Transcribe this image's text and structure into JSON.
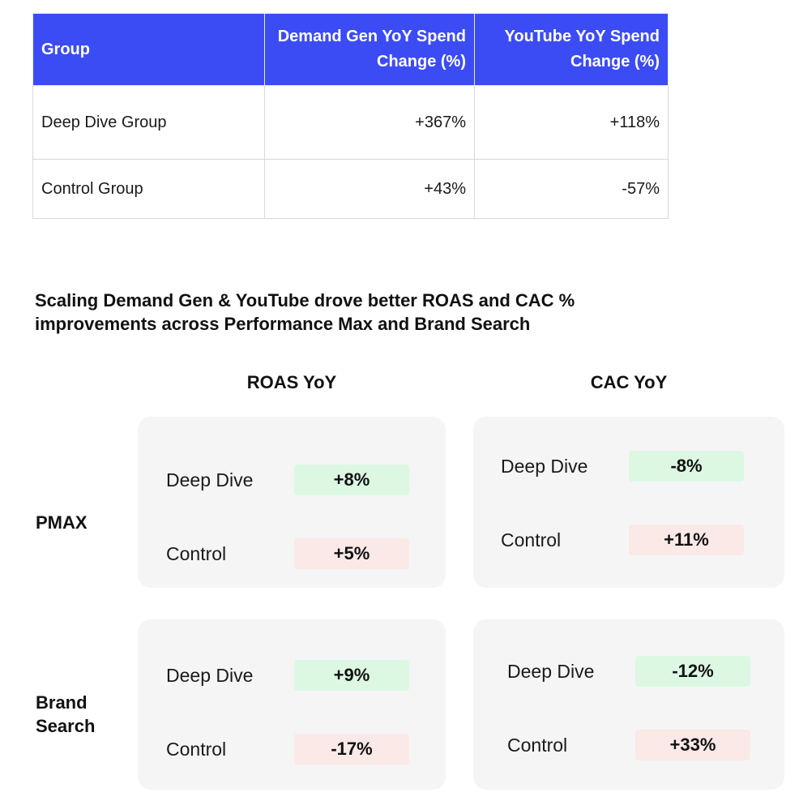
{
  "table": {
    "headers": {
      "group": "Group",
      "demand_gen": "Demand Gen YoY Spend Change (%)",
      "youtube": "YouTube YoY Spend Change (%)"
    },
    "rows": [
      {
        "group": "Deep Dive Group",
        "demand_gen": "+367%",
        "youtube": "+118%"
      },
      {
        "group": "Control Group",
        "demand_gen": "+43%",
        "youtube": "-57%"
      }
    ]
  },
  "section_title": "Scaling Demand Gen & YouTube drove better ROAS and CAC % improvements across Performance Max and Brand Search",
  "columns": {
    "roas": "ROAS YoY",
    "cac": "CAC YoY"
  },
  "rows": {
    "pmax": "PMAX",
    "brand_search": "Brand Search"
  },
  "cards": {
    "pmax_roas": {
      "deep_dive_label": "Deep Dive",
      "deep_dive_value": "+8%",
      "control_label": "Control",
      "control_value": "+5%"
    },
    "pmax_cac": {
      "deep_dive_label": "Deep Dive",
      "deep_dive_value": "-8%",
      "control_label": "Control",
      "control_value": "+11%"
    },
    "brand_roas": {
      "deep_dive_label": "Deep Dive",
      "deep_dive_value": "+9%",
      "control_label": "Control",
      "control_value": "-17%"
    },
    "brand_cac": {
      "deep_dive_label": "Deep Dive",
      "deep_dive_value": "-12%",
      "control_label": "Control",
      "control_value": "+33%"
    }
  },
  "colors": {
    "header_blue": "#3b4cf5",
    "improvement_green": "#dcf8e3",
    "decline_red": "#fbe9e7",
    "card_gray": "#f5f5f5"
  }
}
